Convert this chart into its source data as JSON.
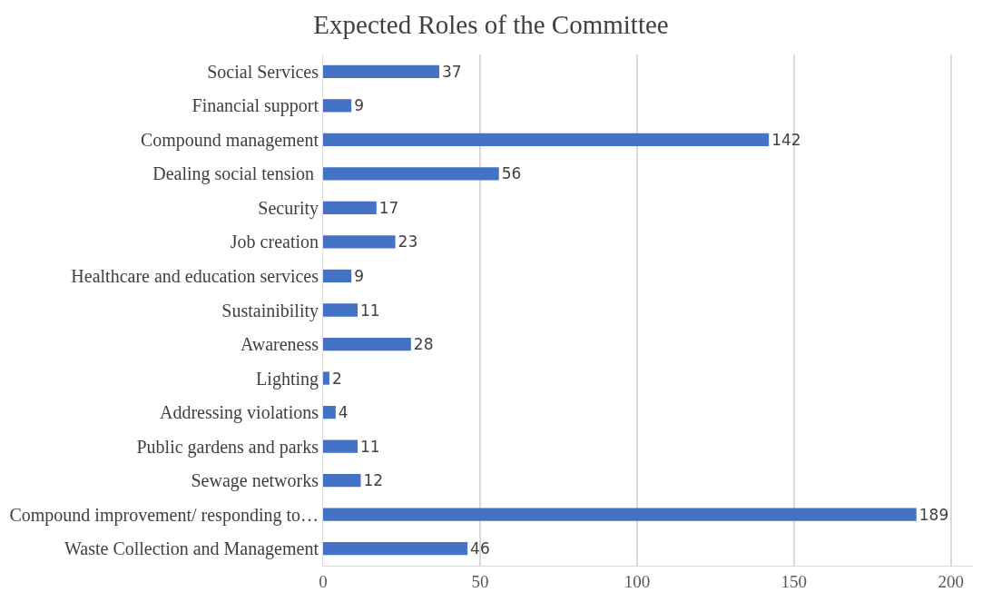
{
  "chart_data": {
    "type": "bar",
    "orientation": "horizontal",
    "title": "Expected Roles of the Committee",
    "categories": [
      "Social Services",
      "Financial support",
      "Compound management",
      "Dealing social tension ",
      "Security",
      "Job creation",
      "Healthcare and education services",
      "Sustainibility",
      "Awareness",
      "Lighting",
      "Addressing violations",
      "Public gardens and parks",
      "Sewage networks",
      "Compound improvement/ responding to…",
      "Waste Collection and Management"
    ],
    "values": [
      37,
      9,
      142,
      56,
      17,
      23,
      9,
      11,
      28,
      2,
      4,
      11,
      12,
      189,
      46
    ],
    "color": "#4472c4",
    "data_labels": true,
    "grid": "x",
    "xlim": [
      0,
      207
    ],
    "xticks": [
      0,
      50,
      100,
      150,
      200
    ]
  }
}
